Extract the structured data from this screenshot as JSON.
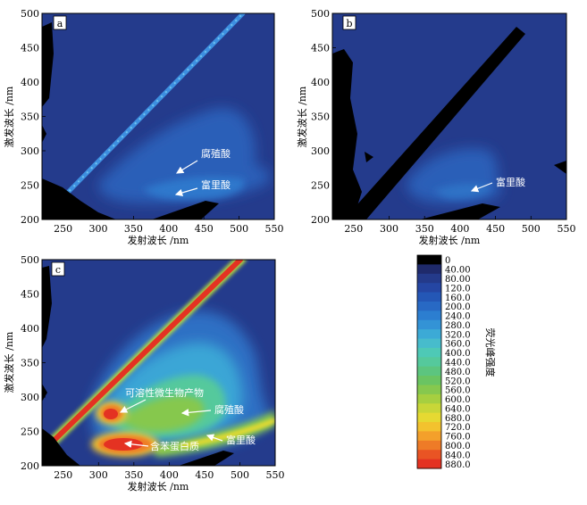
{
  "chart_data": [
    {
      "panel": "a",
      "type": "heatmap",
      "xlabel": "发射波长 /nm",
      "ylabel": "激发波长 /nm",
      "xticks": [
        250,
        300,
        350,
        400,
        450,
        500,
        550
      ],
      "yticks": [
        200,
        250,
        300,
        350,
        400,
        450,
        500
      ],
      "xlim": [
        220,
        550
      ],
      "ylim": [
        200,
        500
      ],
      "annotations": [
        {
          "text": "腐殖酸",
          "at": [
            400,
            280
          ]
        },
        {
          "text": "富里酸",
          "at": [
            400,
            240
          ]
        }
      ]
    },
    {
      "panel": "b",
      "type": "heatmap",
      "xlabel": "发射波长 /nm",
      "ylabel": "激发波长 /nm",
      "xticks": [
        250,
        300,
        350,
        400,
        450,
        500,
        550
      ],
      "yticks": [
        200,
        250,
        300,
        350,
        400,
        450,
        500
      ],
      "xlim": [
        220,
        550
      ],
      "ylim": [
        200,
        500
      ],
      "annotations": [
        {
          "text": "富里酸",
          "at": [
            400,
            240
          ]
        }
      ]
    },
    {
      "panel": "c",
      "type": "heatmap",
      "xlabel": "发射波长 /nm",
      "ylabel": "激发波长 /nm",
      "xticks": [
        250,
        300,
        350,
        400,
        450,
        500,
        550
      ],
      "yticks": [
        200,
        250,
        300,
        350,
        400,
        450,
        500
      ],
      "xlim": [
        220,
        550
      ],
      "ylim": [
        200,
        500
      ],
      "annotations": [
        {
          "text": "可溶性微生物产物",
          "at": [
            320,
            275
          ]
        },
        {
          "text": "腐殖酸",
          "at": [
            410,
            280
          ]
        },
        {
          "text": "富里酸",
          "at": [
            440,
            245
          ]
        },
        {
          "text": "含苯蛋白质",
          "at": [
            330,
            233
          ]
        }
      ]
    }
  ],
  "colorbar": {
    "title": "荧光峰强度",
    "labels": [
      "0",
      "40.00",
      "80.00",
      "120.0",
      "160.0",
      "200.0",
      "240.0",
      "280.0",
      "320.0",
      "360.0",
      "400.0",
      "440.0",
      "480.0",
      "520.0",
      "560.0",
      "600.0",
      "640.0",
      "680.0",
      "720.0",
      "760.0",
      "800.0",
      "840.0",
      "880.0"
    ],
    "colors": [
      "#000000",
      "#1f2a6b",
      "#243a8a",
      "#2546a3",
      "#2457b6",
      "#2869c4",
      "#2c7ed0",
      "#3393d6",
      "#3caad6",
      "#47bccc",
      "#4ec9b6",
      "#55c99c",
      "#5cc57f",
      "#6ac462",
      "#86c84e",
      "#a6cf40",
      "#c8d638",
      "#e6d932",
      "#f3c22e",
      "#f3a02b",
      "#ee7b27",
      "#e95424",
      "#e43222"
    ]
  }
}
